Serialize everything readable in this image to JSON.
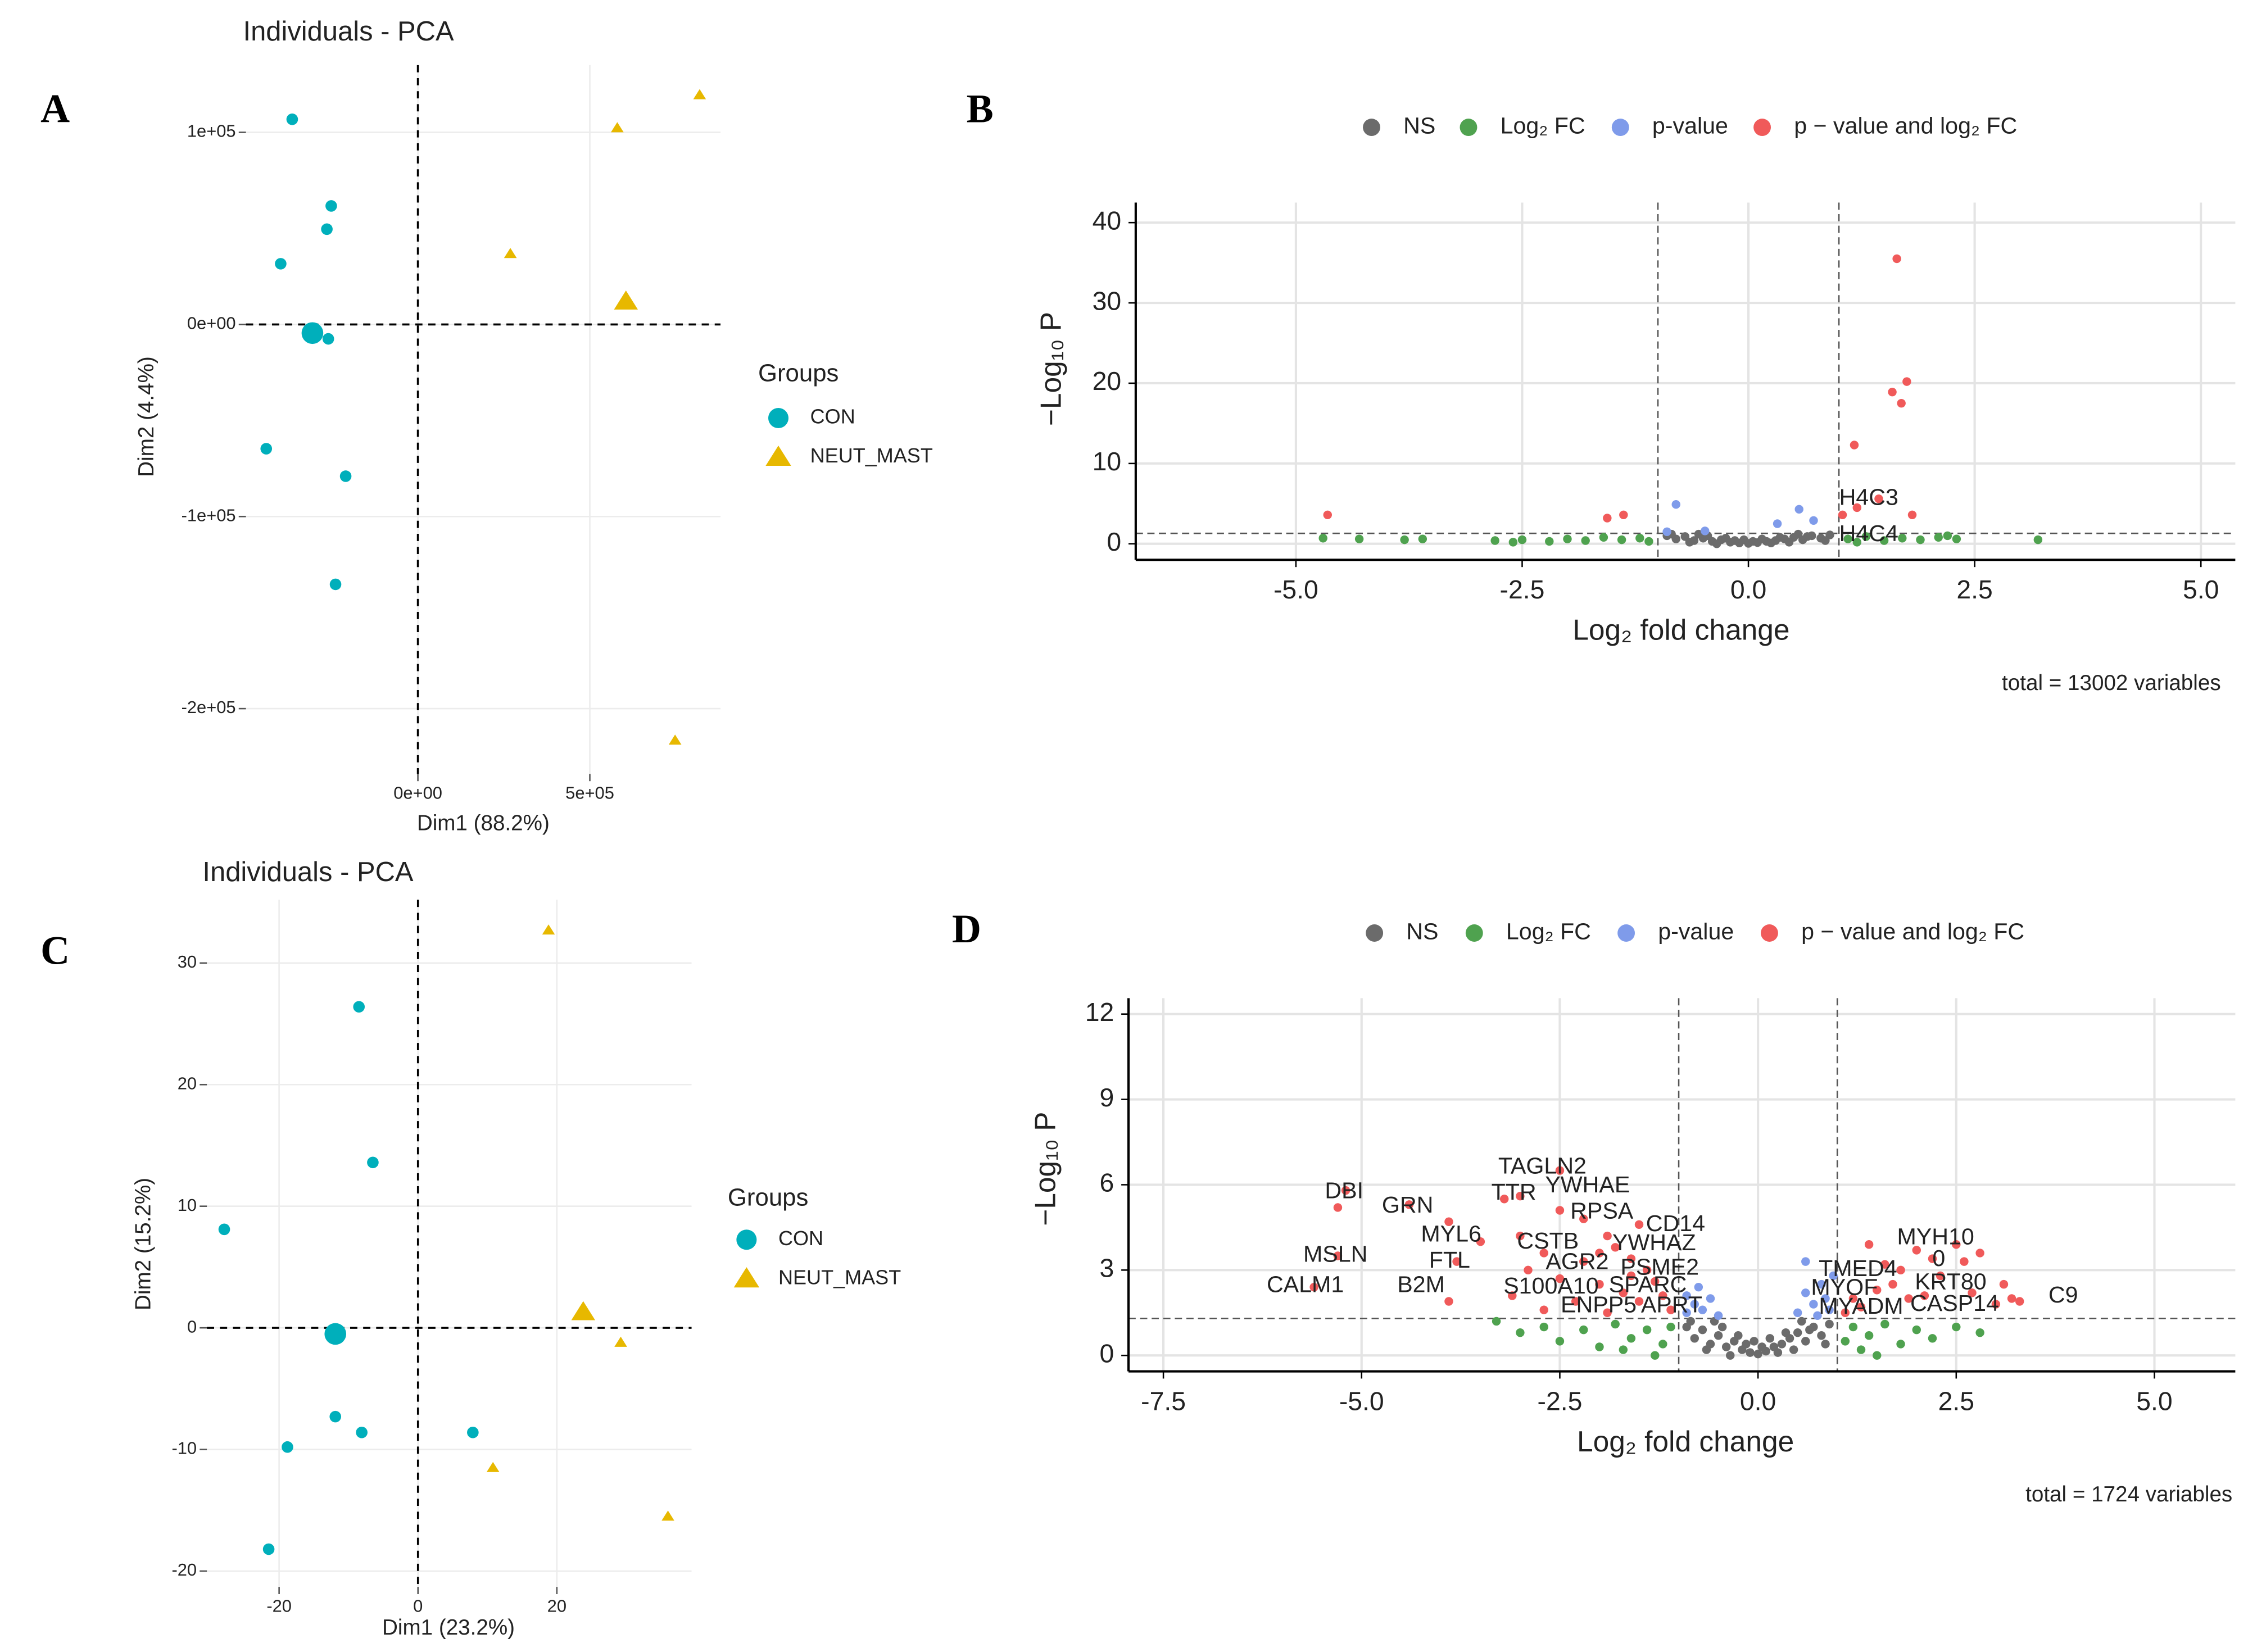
{
  "chart_data": [
    {
      "panel": "A",
      "type": "scatter",
      "title": "Individuals - PCA",
      "xlabel": "Dim1 (88.2%)",
      "ylabel": "Dim2 (4.4%)",
      "legend_title": "Groups",
      "legend": "right",
      "grid": true,
      "zero_lines": true,
      "xlim": [
        -500000,
        880000
      ],
      "ylim": [
        -234000,
        135000
      ],
      "xticks": [
        {
          "value": 0,
          "label": "0e+00"
        },
        {
          "value": 500000,
          "label": "5e+05"
        }
      ],
      "yticks": [
        {
          "value": 100000,
          "label": "1e+05"
        },
        {
          "value": 0,
          "label": "0e+00"
        },
        {
          "value": -100000,
          "label": "-1e+05"
        },
        {
          "value": -200000,
          "label": "-2e+05"
        }
      ],
      "series": [
        {
          "name": "CON",
          "color": "#00AFBB",
          "shape": "circle",
          "x": [
            -365500,
            -252000,
            -264700,
            -399000,
            -260500,
            -441000,
            -210000,
            -239500
          ],
          "y": [
            106800,
            61700,
            49600,
            31600,
            -7500,
            -64700,
            -79000,
            -135300
          ],
          "centroid": [
            -306700,
            -4500
          ]
        },
        {
          "name": "NEUT_MAST",
          "color": "#E7B800",
          "shape": "triangle",
          "x": [
            819300,
            579800,
            268900,
            747900
          ],
          "y": [
            119500,
            102300,
            36800,
            -216500
          ],
          "centroid": [
            605000,
            12000
          ]
        }
      ]
    },
    {
      "panel": "B",
      "type": "scatter",
      "xlabel": "Log₂ fold change",
      "ylabel": "−Log₁₀ P",
      "legend": "top",
      "grid": true,
      "axis_lines": true,
      "caption": "total = 13002 variables",
      "cutoff_x": [
        -1,
        1
      ],
      "cutoff_y": 1.3,
      "xlim": [
        -6.77,
        5.38
      ],
      "ylim": [
        -2,
        42.5
      ],
      "xticks": [
        {
          "value": -5,
          "label": "-5.0"
        },
        {
          "value": -2.5,
          "label": "-2.5"
        },
        {
          "value": 0,
          "label": "0.0"
        },
        {
          "value": 2.5,
          "label": "2.5"
        },
        {
          "value": 5,
          "label": "5.0"
        }
      ],
      "yticks": [
        0,
        10,
        20,
        30,
        40
      ],
      "series": [
        {
          "name": "NS",
          "color": "#6b6b6b",
          "x": [
            -0.9,
            -0.8,
            -0.7,
            -0.6,
            -0.5,
            -0.4,
            -0.3,
            -0.2,
            -0.1,
            0.0,
            0.1,
            0.2,
            0.3,
            0.4,
            0.5,
            0.6,
            0.7,
            0.8,
            0.9,
            -0.85,
            -0.65,
            -0.45,
            -0.25,
            -0.15,
            0.05,
            0.25,
            0.45,
            0.65,
            0.85,
            -0.35,
            0.35,
            -0.55,
            0.55,
            0.15,
            -0.05
          ],
          "y": [
            1.0,
            0.6,
            0.9,
            0.4,
            0.7,
            0.3,
            0.5,
            0.2,
            0.1,
            0.05,
            0.15,
            0.3,
            0.4,
            0.6,
            0.8,
            0.5,
            1.0,
            0.7,
            1.1,
            1.2,
            0.2,
            1.0,
            0.7,
            0.4,
            0.3,
            0.1,
            0.2,
            0.9,
            0.4,
            0.0,
            0.8,
            1.2,
            1.2,
            0.6,
            0.5
          ]
        },
        {
          "name": "Log₂ FC",
          "color": "#4fa24f",
          "x": [
            -4.7,
            -4.3,
            -3.8,
            -3.6,
            -2.8,
            -2.5,
            -2.2,
            -2.0,
            -1.8,
            -1.6,
            -1.4,
            -1.2,
            -1.1,
            1.1,
            1.3,
            1.5,
            1.7,
            1.9,
            2.1,
            2.3,
            2.2,
            3.2,
            1.2,
            -2.6
          ],
          "y": [
            0.7,
            0.6,
            0.5,
            0.6,
            0.4,
            0.5,
            0.3,
            0.6,
            0.4,
            0.8,
            0.5,
            0.7,
            0.3,
            0.6,
            0.9,
            0.4,
            0.7,
            0.5,
            0.8,
            0.6,
            1.0,
            0.5,
            0.2,
            0.2
          ]
        },
        {
          "name": "p-value",
          "color": "#7f9bea",
          "x": [
            -0.8,
            0.56,
            0.72,
            -0.48,
            0.32,
            -0.9
          ],
          "y": [
            4.9,
            4.3,
            2.9,
            1.6,
            2.5,
            1.5
          ]
        },
        {
          "name": "p − value and log₂ FC",
          "color": "#f05a5a",
          "x": [
            1.64,
            1.75,
            1.59,
            1.69,
            1.17,
            -4.65,
            -1.56,
            -1.38,
            1.44,
            1.81,
            1.04,
            1.2
          ],
          "y": [
            35.5,
            20.2,
            18.9,
            17.5,
            12.3,
            3.6,
            3.2,
            3.6,
            5.6,
            3.6,
            3.6,
            4.5
          ]
        }
      ],
      "annotations": [
        {
          "text": "H4C3",
          "x": 1.33,
          "y": 5.6
        },
        {
          "text": "H4C4",
          "x": 1.33,
          "y": 1.1
        }
      ]
    },
    {
      "panel": "C",
      "type": "scatter",
      "title": "Individuals - PCA",
      "xlabel": "Dim1 (23.2%)",
      "ylabel": "Dim2 (15.2%)",
      "legend_title": "Groups",
      "legend": "right",
      "grid": true,
      "zero_lines": true,
      "xlim": [
        -30.4,
        39.4
      ],
      "ylim": [
        -21.3,
        35.2
      ],
      "xticks": [
        -20,
        0,
        20
      ],
      "yticks": [
        30,
        20,
        10,
        0,
        -10,
        -20
      ],
      "series": [
        {
          "name": "CON",
          "color": "#00AFBB",
          "shape": "circle",
          "x": [
            -8.5,
            -6.5,
            -27.9,
            -11.9,
            -8.1,
            -18.8,
            7.9,
            -21.5
          ],
          "y": [
            26.4,
            13.6,
            8.1,
            -7.3,
            -8.6,
            -9.8,
            -8.6,
            -18.2
          ],
          "centroid": [
            -11.9,
            -0.5
          ]
        },
        {
          "name": "NEUT_MAST",
          "color": "#E7B800",
          "shape": "triangle",
          "x": [
            18.8,
            29.2,
            10.8,
            36.0
          ],
          "y": [
            32.7,
            -1.2,
            -11.5,
            -15.5
          ],
          "centroid": [
            23.8,
            1.3
          ]
        }
      ]
    },
    {
      "panel": "D",
      "type": "scatter",
      "xlabel": "Log₂ fold change",
      "ylabel": "−Log₁₀ P",
      "legend": "top",
      "grid": true,
      "axis_lines": true,
      "caption": "total = 1724 variables",
      "cutoff_x": [
        -1,
        1
      ],
      "cutoff_y": 1.3,
      "xlim": [
        -7.94,
        6.02
      ],
      "ylim": [
        -0.56,
        12.56
      ],
      "xticks": [
        {
          "value": -7.5,
          "label": "-7.5"
        },
        {
          "value": -5,
          "label": "-5.0"
        },
        {
          "value": -2.5,
          "label": "-2.5"
        },
        {
          "value": 0,
          "label": "0.0"
        },
        {
          "value": 2.5,
          "label": "2.5"
        },
        {
          "value": 5,
          "label": "5.0"
        }
      ],
      "yticks": [
        0,
        3,
        6,
        9,
        12
      ],
      "series": [
        {
          "name": "NS",
          "color": "#6b6b6b",
          "x": [
            -0.9,
            -0.8,
            -0.7,
            -0.6,
            -0.5,
            -0.4,
            -0.3,
            -0.2,
            -0.1,
            0.0,
            0.1,
            0.2,
            0.3,
            0.4,
            0.5,
            0.6,
            0.7,
            0.8,
            0.9,
            -0.85,
            -0.65,
            -0.45,
            -0.25,
            -0.15,
            0.05,
            0.25,
            0.45,
            0.65,
            0.85,
            -0.35,
            0.35,
            -0.55,
            0.55,
            0.15,
            -0.05
          ],
          "y": [
            1.0,
            0.6,
            0.9,
            0.4,
            0.7,
            0.3,
            0.5,
            0.2,
            0.1,
            0.05,
            0.15,
            0.3,
            0.4,
            0.6,
            0.8,
            0.5,
            1.0,
            0.7,
            1.1,
            1.2,
            0.2,
            1.0,
            0.7,
            0.4,
            0.3,
            0.1,
            0.2,
            0.9,
            0.4,
            0.0,
            0.8,
            1.2,
            1.2,
            0.6,
            0.5
          ]
        },
        {
          "name": "Log₂ FC",
          "color": "#4fa24f",
          "x": [
            -3.0,
            -2.7,
            -2.5,
            -2.2,
            -2.0,
            -1.8,
            -1.6,
            -1.4,
            -1.2,
            -1.1,
            -1.3,
            -1.7,
            1.1,
            1.2,
            1.4,
            1.6,
            1.8,
            2.0,
            2.2,
            2.5,
            1.3,
            1.5,
            -3.3,
            2.8
          ],
          "y": [
            0.8,
            1.0,
            0.5,
            0.9,
            0.3,
            1.1,
            0.6,
            0.9,
            0.4,
            1.0,
            0.0,
            0.2,
            0.5,
            1.0,
            0.7,
            1.1,
            0.4,
            0.9,
            0.6,
            1.0,
            0.2,
            0.0,
            1.2,
            0.8
          ]
        },
        {
          "name": "p-value",
          "color": "#7f9bea",
          "x": [
            -0.9,
            -0.8,
            -0.7,
            -0.6,
            -0.9,
            -0.5,
            0.5,
            0.6,
            0.7,
            0.8,
            0.9,
            0.6,
            0.85,
            0.75,
            -0.75,
            0.95
          ],
          "y": [
            2.1,
            1.8,
            1.6,
            2.0,
            1.5,
            1.4,
            1.5,
            2.2,
            1.8,
            2.5,
            1.6,
            3.3,
            2.0,
            1.4,
            2.4,
            2.8
          ]
        },
        {
          "name": "p − value and log₂ FC",
          "color": "#f05a5a",
          "x": [
            -5.3,
            -5.2,
            -4.4,
            -3.9,
            -3.8,
            -5.3,
            -5.6,
            -3.9,
            -3.2,
            -3.0,
            -2.5,
            -2.5,
            -2.2,
            -1.9,
            -3.0,
            -2.7,
            -2.9,
            -2.5,
            -2.2,
            -1.8,
            -1.6,
            -1.4,
            -1.3,
            -2.0,
            -1.7,
            -1.5,
            -2.3,
            -3.1,
            -2.7,
            -1.2,
            -1.1,
            -1.9,
            -1.5,
            -1.6,
            -3.5,
            -2.0,
            1.2,
            1.4,
            1.6,
            1.7,
            1.9,
            2.0,
            2.2,
            2.3,
            2.5,
            2.6,
            2.8,
            3.1,
            3.2,
            3.3,
            1.3,
            1.5,
            2.1,
            1.8,
            2.7,
            3.0,
            1.1
          ],
          "y": [
            5.2,
            5.8,
            5.3,
            4.7,
            3.3,
            3.5,
            2.4,
            1.9,
            5.5,
            5.6,
            6.5,
            5.1,
            4.8,
            4.2,
            4.2,
            3.6,
            3.0,
            2.7,
            3.3,
            3.8,
            3.4,
            3.0,
            2.6,
            2.5,
            2.2,
            1.9,
            1.9,
            2.1,
            1.6,
            2.1,
            1.6,
            1.5,
            4.6,
            2.8,
            4.0,
            3.6,
            2.0,
            3.9,
            3.2,
            2.5,
            2.0,
            3.7,
            3.4,
            2.8,
            3.9,
            3.3,
            3.6,
            2.5,
            2.0,
            1.9,
            1.7,
            2.3,
            2.1,
            3.0,
            2.2,
            1.8,
            1.5
          ]
        }
      ],
      "annotations": [
        {
          "text": "DBI",
          "x": -5.22,
          "y": 5.74
        },
        {
          "text": "GRN",
          "x": -4.42,
          "y": 5.24
        },
        {
          "text": "TAGLN2",
          "x": -2.72,
          "y": 6.61
        },
        {
          "text": "TTR",
          "x": -3.08,
          "y": 5.69
        },
        {
          "text": "YWHAE",
          "x": -2.15,
          "y": 5.95
        },
        {
          "text": "RPSA",
          "x": -1.97,
          "y": 5.03
        },
        {
          "text": "CD14",
          "x": -1.04,
          "y": 4.58
        },
        {
          "text": "MYL6",
          "x": -3.87,
          "y": 4.22
        },
        {
          "text": "CSTB",
          "x": -2.65,
          "y": 3.97
        },
        {
          "text": "YWHAZ",
          "x": -1.31,
          "y": 3.91
        },
        {
          "text": "AGR2",
          "x": -2.28,
          "y": 3.25
        },
        {
          "text": "PSME2",
          "x": -1.24,
          "y": 3.05
        },
        {
          "text": "MSLN",
          "x": -5.33,
          "y": 3.51
        },
        {
          "text": "FTL",
          "x": -3.89,
          "y": 3.3
        },
        {
          "text": "CALM1",
          "x": -5.71,
          "y": 2.44
        },
        {
          "text": "B2M",
          "x": -4.25,
          "y": 2.44
        },
        {
          "text": "S100A10",
          "x": -2.61,
          "y": 2.39
        },
        {
          "text": "SPARC",
          "x": -1.39,
          "y": 2.44
        },
        {
          "text": "ENPP5",
          "x": -2.01,
          "y": 1.73
        },
        {
          "text": "APRT",
          "x": -1.09,
          "y": 1.73
        },
        {
          "text": "MYH10",
          "x": 2.24,
          "y": 4.12
        },
        {
          "text": "0",
          "x": 2.28,
          "y": 3.36
        },
        {
          "text": "TMED4",
          "x": 1.26,
          "y": 3.0
        },
        {
          "text": "KRT80",
          "x": 2.43,
          "y": 2.54
        },
        {
          "text": "MYOF",
          "x": 1.09,
          "y": 2.34
        },
        {
          "text": "CASP14",
          "x": 2.48,
          "y": 1.78
        },
        {
          "text": "MYADM",
          "x": 1.3,
          "y": 1.68
        },
        {
          "text": "C9",
          "x": 3.85,
          "y": 2.08
        }
      ]
    }
  ]
}
